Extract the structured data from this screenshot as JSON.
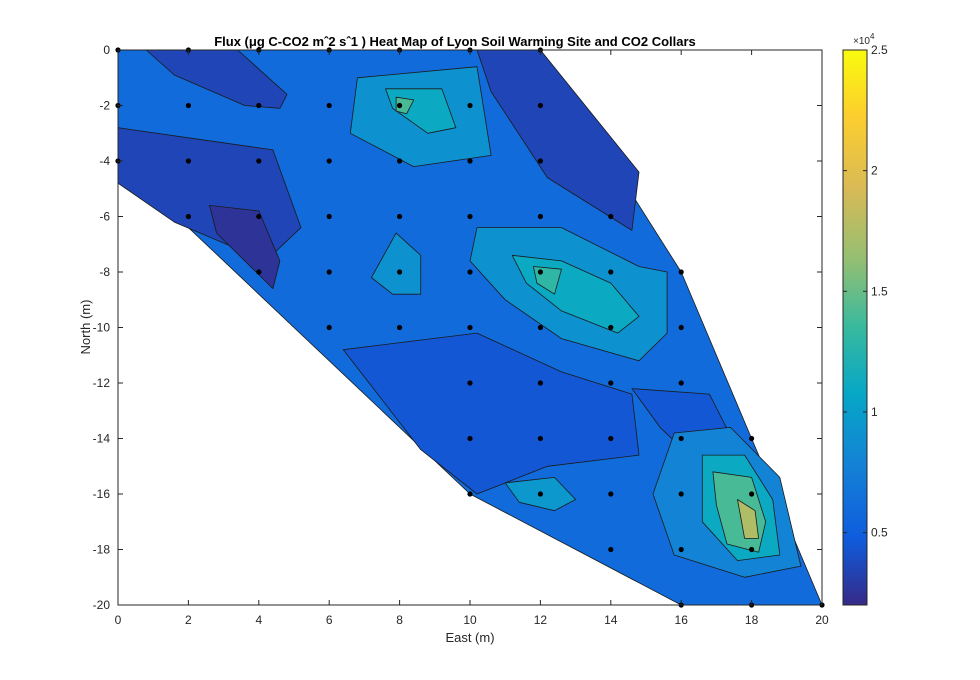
{
  "chart_data": {
    "type": "heatmap",
    "title": "Flux (μg C-CO2 mˆ2 sˆ1 ) Heat Map of Lyon Soil Warming Site and CO2 Collars",
    "xlabel": "East (m)",
    "ylabel": "North (m)",
    "xlim": [
      0,
      20
    ],
    "ylim": [
      -20,
      0
    ],
    "x_ticks": [
      "0",
      "2",
      "4",
      "6",
      "8",
      "10",
      "12",
      "14",
      "16",
      "18",
      "20"
    ],
    "y_ticks": [
      "0",
      "-2",
      "-4",
      "-6",
      "-8",
      "-10",
      "-12",
      "-14",
      "-16",
      "-18",
      "-20"
    ],
    "colorbar": {
      "range": [
        2000,
        25000
      ],
      "exponent_label": "×10",
      "exponent_power": "4",
      "ticks": [
        {
          "value": 5000,
          "label": "0.5"
        },
        {
          "value": 10000,
          "label": "1"
        },
        {
          "value": 15000,
          "label": "1.5"
        },
        {
          "value": 20000,
          "label": "2"
        },
        {
          "value": 25000,
          "label": "2.5"
        }
      ],
      "colormap": "parula"
    },
    "boundary": [
      [
        0,
        0
      ],
      [
        12,
        0
      ],
      [
        16,
        -8
      ],
      [
        18,
        -14
      ],
      [
        20,
        -20
      ],
      [
        16,
        -20
      ],
      [
        10,
        -16
      ],
      [
        0,
        -4
      ]
    ],
    "collars": [
      [
        0,
        0
      ],
      [
        2,
        0
      ],
      [
        4,
        0
      ],
      [
        6,
        0
      ],
      [
        8,
        0
      ],
      [
        10,
        0
      ],
      [
        12,
        0
      ],
      [
        0,
        -2
      ],
      [
        2,
        -2
      ],
      [
        4,
        -2
      ],
      [
        6,
        -2
      ],
      [
        8,
        -2
      ],
      [
        10,
        -2
      ],
      [
        12,
        -2
      ],
      [
        0,
        -4
      ],
      [
        2,
        -4
      ],
      [
        4,
        -4
      ],
      [
        6,
        -4
      ],
      [
        8,
        -4
      ],
      [
        10,
        -4
      ],
      [
        12,
        -4
      ],
      [
        2,
        -6
      ],
      [
        4,
        -6
      ],
      [
        6,
        -6
      ],
      [
        8,
        -6
      ],
      [
        10,
        -6
      ],
      [
        12,
        -6
      ],
      [
        14,
        -6
      ],
      [
        4,
        -8
      ],
      [
        6,
        -8
      ],
      [
        8,
        -8
      ],
      [
        10,
        -8
      ],
      [
        12,
        -8
      ],
      [
        14,
        -8
      ],
      [
        16,
        -8
      ],
      [
        6,
        -10
      ],
      [
        8,
        -10
      ],
      [
        10,
        -10
      ],
      [
        12,
        -10
      ],
      [
        14,
        -10
      ],
      [
        16,
        -10
      ],
      [
        10,
        -12
      ],
      [
        12,
        -12
      ],
      [
        14,
        -12
      ],
      [
        16,
        -12
      ],
      [
        10,
        -14
      ],
      [
        12,
        -14
      ],
      [
        14,
        -14
      ],
      [
        16,
        -14
      ],
      [
        18,
        -14
      ],
      [
        10,
        -16
      ],
      [
        12,
        -16
      ],
      [
        14,
        -16
      ],
      [
        16,
        -16
      ],
      [
        18,
        -16
      ],
      [
        14,
        -18
      ],
      [
        16,
        -18
      ],
      [
        18,
        -18
      ],
      [
        16,
        -20
      ],
      [
        18,
        -20
      ],
      [
        20,
        -20
      ]
    ],
    "regions": [
      {
        "level": 6000,
        "points": [
          [
            0,
            0
          ],
          [
            12,
            0
          ],
          [
            16,
            -8
          ],
          [
            18,
            -14
          ],
          [
            20,
            -20
          ],
          [
            16,
            -20
          ],
          [
            10,
            -16
          ],
          [
            0,
            -4
          ]
        ]
      },
      {
        "level": 3500,
        "points": [
          [
            0.8,
            0
          ],
          [
            3.4,
            0
          ],
          [
            4.8,
            -1.6
          ],
          [
            4.6,
            -2.1
          ],
          [
            3.6,
            -2.0
          ],
          [
            1.6,
            -0.9
          ]
        ]
      },
      {
        "level": 3500,
        "points": [
          [
            10.2,
            0
          ],
          [
            12,
            0
          ],
          [
            14.8,
            -4.4
          ],
          [
            14.6,
            -6.5
          ],
          [
            12.2,
            -4.6
          ],
          [
            10.6,
            -1.5
          ]
        ]
      },
      {
        "level": 3500,
        "points": [
          [
            0,
            -2.8
          ],
          [
            2.2,
            -3.2
          ],
          [
            4.4,
            -3.6
          ],
          [
            5.2,
            -6.4
          ],
          [
            4.2,
            -7.6
          ],
          [
            1.6,
            -6.2
          ],
          [
            0,
            -4.8
          ]
        ]
      },
      {
        "level": 2500,
        "points": [
          [
            2.6,
            -5.6
          ],
          [
            4.0,
            -5.8
          ],
          [
            4.6,
            -7.6
          ],
          [
            4.4,
            -8.6
          ],
          [
            2.8,
            -6.6
          ]
        ]
      },
      {
        "level": 4500,
        "points": [
          [
            6.4,
            -10.8
          ],
          [
            10.2,
            -10.2
          ],
          [
            12.6,
            -11.6
          ],
          [
            14.6,
            -12.4
          ],
          [
            14.8,
            -14.6
          ],
          [
            12.2,
            -15.0
          ],
          [
            10.2,
            -16.0
          ],
          [
            8.6,
            -14.4
          ]
        ]
      },
      {
        "level": 4500,
        "points": [
          [
            14.6,
            -12.2
          ],
          [
            16.8,
            -12.4
          ],
          [
            17.6,
            -14.4
          ],
          [
            16.4,
            -14.8
          ],
          [
            15.4,
            -13.6
          ]
        ]
      },
      {
        "level": 9000,
        "points": [
          [
            6.8,
            -1.0
          ],
          [
            10.2,
            -0.6
          ],
          [
            10.6,
            -3.8
          ],
          [
            8.4,
            -4.2
          ],
          [
            6.6,
            -3.0
          ]
        ]
      },
      {
        "level": 11000,
        "points": [
          [
            7.6,
            -1.4
          ],
          [
            9.2,
            -1.4
          ],
          [
            9.6,
            -2.8
          ],
          [
            8.8,
            -3.0
          ],
          [
            7.8,
            -2.1
          ]
        ]
      },
      {
        "level": 14000,
        "points": [
          [
            7.9,
            -1.7
          ],
          [
            8.4,
            -1.8
          ],
          [
            8.2,
            -2.3
          ],
          [
            7.9,
            -2.2
          ]
        ]
      },
      {
        "level": 9000,
        "points": [
          [
            7.2,
            -8.2
          ],
          [
            7.9,
            -6.6
          ],
          [
            8.6,
            -7.4
          ],
          [
            8.6,
            -8.8
          ],
          [
            7.8,
            -8.8
          ]
        ]
      },
      {
        "level": 9000,
        "points": [
          [
            10.2,
            -6.4
          ],
          [
            12.6,
            -6.4
          ],
          [
            14.8,
            -7.8
          ],
          [
            15.6,
            -8.0
          ],
          [
            15.6,
            -10.2
          ],
          [
            14.8,
            -11.2
          ],
          [
            12.6,
            -10.4
          ],
          [
            11.0,
            -9.0
          ],
          [
            10.0,
            -7.6
          ]
        ]
      },
      {
        "level": 11000,
        "points": [
          [
            11.2,
            -7.4
          ],
          [
            12.6,
            -7.6
          ],
          [
            14.0,
            -8.4
          ],
          [
            14.8,
            -9.6
          ],
          [
            14.2,
            -10.2
          ],
          [
            12.6,
            -9.4
          ],
          [
            11.6,
            -8.4
          ]
        ]
      },
      {
        "level": 13000,
        "points": [
          [
            11.8,
            -7.8
          ],
          [
            12.6,
            -7.9
          ],
          [
            12.4,
            -8.8
          ],
          [
            11.9,
            -8.4
          ]
        ]
      },
      {
        "level": 8000,
        "points": [
          [
            15.8,
            -13.8
          ],
          [
            17.4,
            -13.6
          ],
          [
            18.8,
            -15.4
          ],
          [
            19.4,
            -18.6
          ],
          [
            17.8,
            -19.0
          ],
          [
            15.8,
            -18.2
          ],
          [
            15.2,
            -16.0
          ]
        ]
      },
      {
        "level": 11000,
        "points": [
          [
            16.6,
            -14.6
          ],
          [
            17.8,
            -14.6
          ],
          [
            18.6,
            -16.2
          ],
          [
            18.8,
            -18.2
          ],
          [
            17.6,
            -18.4
          ],
          [
            16.6,
            -17.0
          ]
        ]
      },
      {
        "level": 14000,
        "points": [
          [
            16.9,
            -15.2
          ],
          [
            18.0,
            -15.4
          ],
          [
            18.4,
            -17.0
          ],
          [
            18.2,
            -18.1
          ],
          [
            17.3,
            -17.8
          ],
          [
            17.0,
            -16.4
          ]
        ]
      },
      {
        "level": 17500,
        "points": [
          [
            17.6,
            -16.2
          ],
          [
            18.1,
            -16.6
          ],
          [
            18.2,
            -17.6
          ],
          [
            17.8,
            -17.6
          ]
        ]
      },
      {
        "level": 9500,
        "points": [
          [
            11.0,
            -15.6
          ],
          [
            12.4,
            -15.4
          ],
          [
            13.0,
            -16.2
          ],
          [
            12.4,
            -16.6
          ],
          [
            11.4,
            -16.3
          ]
        ]
      }
    ]
  }
}
